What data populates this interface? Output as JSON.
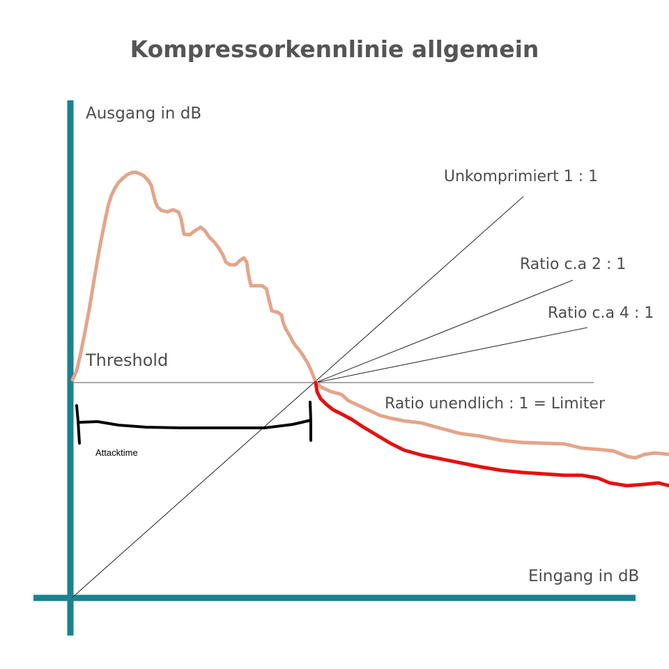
{
  "title": "Kompressorkennlinie allgemein",
  "axes": {
    "y_label": "Ausgang in dB",
    "x_label": "Eingang in dB"
  },
  "threshold_label": "Threshold",
  "attack_label": "Attacktime",
  "ratio_lines": [
    {
      "key": "unity",
      "label": "Unkomprimiert 1 : 1"
    },
    {
      "key": "ratio_2",
      "label": "Ratio c.a 2 : 1"
    },
    {
      "key": "ratio_4",
      "label": "Ratio c.a 4 : 1"
    },
    {
      "key": "limiter",
      "label": "Ratio unendlich : 1 = Limiter"
    }
  ],
  "colors": {
    "axis": "#1a8290",
    "text": "#4d4d4d",
    "title": "#555555",
    "ratio_line": "#333333",
    "threshold_line": "#777777",
    "attack_curve": "#e3a58a",
    "release_curve": "#e61010",
    "attack_bracket": "#000000"
  }
}
